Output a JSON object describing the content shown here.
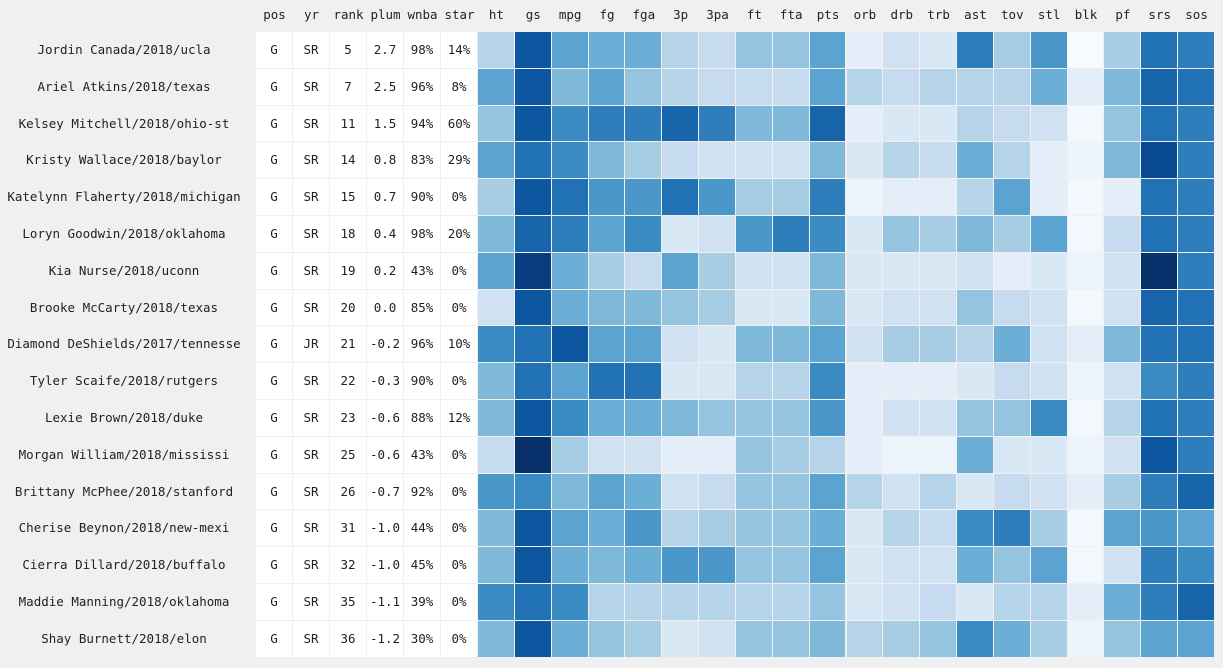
{
  "chart_data": {
    "type": "heatmap",
    "title": "",
    "colorscale": "Blues",
    "grid_background": "#f0f0f0",
    "text_columns": [
      "pos",
      "yr",
      "rank",
      "plum",
      "wnba",
      "star"
    ],
    "heat_columns": [
      "ht",
      "gs",
      "mpg",
      "fg",
      "fga",
      "3p",
      "3pa",
      "ft",
      "fta",
      "pts",
      "orb",
      "drb",
      "trb",
      "ast",
      "tov",
      "stl",
      "blk",
      "pf",
      "srs",
      "sos"
    ],
    "rows": [
      {
        "label": "Jordin Canada/2018/ucla",
        "pos": "G",
        "yr": "SR",
        "rank": "5",
        "plum": "2.7",
        "wnba": "98%",
        "star": "14%",
        "heat": [
          0.3,
          0.85,
          0.55,
          0.5,
          0.5,
          0.3,
          0.25,
          0.4,
          0.4,
          0.55,
          0.1,
          0.2,
          0.15,
          0.7,
          0.35,
          0.6,
          0.0,
          0.35,
          0.75,
          0.7
        ]
      },
      {
        "label": "Ariel Atkins/2018/texas",
        "pos": "G",
        "yr": "SR",
        "rank": "7",
        "plum": "2.5",
        "wnba": "96%",
        "star": "8%",
        "heat": [
          0.55,
          0.85,
          0.45,
          0.55,
          0.4,
          0.3,
          0.25,
          0.25,
          0.25,
          0.55,
          0.3,
          0.25,
          0.3,
          0.3,
          0.3,
          0.5,
          0.1,
          0.45,
          0.8,
          0.75
        ]
      },
      {
        "label": "Kelsey Mitchell/2018/ohio-st",
        "pos": "G",
        "yr": "SR",
        "rank": "11",
        "plum": "1.5",
        "wnba": "94%",
        "star": "60%",
        "heat": [
          0.4,
          0.85,
          0.65,
          0.7,
          0.7,
          0.8,
          0.7,
          0.45,
          0.45,
          0.8,
          0.1,
          0.15,
          0.15,
          0.3,
          0.25,
          0.2,
          0.02,
          0.4,
          0.75,
          0.7
        ]
      },
      {
        "label": "Kristy Wallace/2018/baylor",
        "pos": "G",
        "yr": "SR",
        "rank": "14",
        "plum": "0.8",
        "wnba": "83%",
        "star": "29%",
        "heat": [
          0.55,
          0.75,
          0.65,
          0.45,
          0.35,
          0.25,
          0.2,
          0.2,
          0.2,
          0.45,
          0.15,
          0.3,
          0.25,
          0.5,
          0.3,
          0.1,
          0.05,
          0.45,
          0.9,
          0.7
        ]
      },
      {
        "label": "Katelynn Flaherty/2018/michigan",
        "pos": "G",
        "yr": "SR",
        "rank": "15",
        "plum": "0.7",
        "wnba": "90%",
        "star": "0%",
        "heat": [
          0.35,
          0.85,
          0.75,
          0.6,
          0.6,
          0.75,
          0.6,
          0.35,
          0.35,
          0.7,
          0.05,
          0.1,
          0.1,
          0.3,
          0.55,
          0.1,
          0.02,
          0.1,
          0.75,
          0.7
        ]
      },
      {
        "label": "Loryn Goodwin/2018/oklahoma",
        "pos": "G",
        "yr": "SR",
        "rank": "18",
        "plum": "0.4",
        "wnba": "98%",
        "star": "20%",
        "heat": [
          0.45,
          0.8,
          0.7,
          0.55,
          0.65,
          0.15,
          0.2,
          0.6,
          0.7,
          0.65,
          0.15,
          0.4,
          0.35,
          0.45,
          0.35,
          0.55,
          0.02,
          0.25,
          0.75,
          0.7
        ]
      },
      {
        "label": "Kia Nurse/2018/uconn",
        "pos": "G",
        "yr": "SR",
        "rank": "19",
        "plum": "0.2",
        "wnba": "43%",
        "star": "0%",
        "heat": [
          0.55,
          0.95,
          0.5,
          0.35,
          0.25,
          0.55,
          0.35,
          0.2,
          0.2,
          0.45,
          0.15,
          0.15,
          0.15,
          0.2,
          0.1,
          0.15,
          0.05,
          0.2,
          1.0,
          0.7
        ]
      },
      {
        "label": "Brooke McCarty/2018/texas",
        "pos": "G",
        "yr": "SR",
        "rank": "20",
        "plum": "0.0",
        "wnba": "85%",
        "star": "0%",
        "heat": [
          0.2,
          0.85,
          0.5,
          0.45,
          0.45,
          0.4,
          0.35,
          0.15,
          0.15,
          0.45,
          0.15,
          0.2,
          0.2,
          0.4,
          0.25,
          0.2,
          0.02,
          0.2,
          0.8,
          0.75
        ]
      },
      {
        "label": "Diamond DeShields/2017/tennesse",
        "pos": "G",
        "yr": "JR",
        "rank": "21",
        "plum": "-0.2",
        "wnba": "96%",
        "star": "10%",
        "heat": [
          0.65,
          0.75,
          0.85,
          0.55,
          0.55,
          0.2,
          0.15,
          0.45,
          0.45,
          0.55,
          0.2,
          0.35,
          0.35,
          0.3,
          0.5,
          0.2,
          0.1,
          0.45,
          0.75,
          0.75
        ]
      },
      {
        "label": "Tyler Scaife/2018/rutgers",
        "pos": "G",
        "yr": "SR",
        "rank": "22",
        "plum": "-0.3",
        "wnba": "90%",
        "star": "0%",
        "heat": [
          0.45,
          0.75,
          0.55,
          0.75,
          0.75,
          0.15,
          0.15,
          0.3,
          0.3,
          0.65,
          0.1,
          0.1,
          0.1,
          0.15,
          0.25,
          0.2,
          0.05,
          0.2,
          0.65,
          0.7
        ]
      },
      {
        "label": "Lexie Brown/2018/duke",
        "pos": "G",
        "yr": "SR",
        "rank": "23",
        "plum": "-0.6",
        "wnba": "88%",
        "star": "12%",
        "heat": [
          0.45,
          0.85,
          0.65,
          0.5,
          0.5,
          0.45,
          0.4,
          0.4,
          0.4,
          0.6,
          0.1,
          0.2,
          0.2,
          0.4,
          0.4,
          0.65,
          0.02,
          0.3,
          0.75,
          0.7
        ]
      },
      {
        "label": "Morgan William/2018/mississi",
        "pos": "G",
        "yr": "SR",
        "rank": "25",
        "plum": "-0.6",
        "wnba": "43%",
        "star": "0%",
        "heat": [
          0.25,
          1.0,
          0.35,
          0.2,
          0.2,
          0.1,
          0.1,
          0.4,
          0.35,
          0.3,
          0.1,
          0.05,
          0.05,
          0.5,
          0.15,
          0.15,
          0.05,
          0.2,
          0.85,
          0.7
        ]
      },
      {
        "label": "Brittany McPhee/2018/stanford",
        "pos": "G",
        "yr": "SR",
        "rank": "26",
        "plum": "-0.7",
        "wnba": "92%",
        "star": "0%",
        "heat": [
          0.6,
          0.65,
          0.45,
          0.55,
          0.5,
          0.2,
          0.25,
          0.4,
          0.4,
          0.55,
          0.3,
          0.2,
          0.3,
          0.15,
          0.25,
          0.2,
          0.1,
          0.35,
          0.7,
          0.8
        ]
      },
      {
        "label": "Cherise Beynon/2018/new-mexi",
        "pos": "G",
        "yr": "SR",
        "rank": "31",
        "plum": "-1.0",
        "wnba": "44%",
        "star": "0%",
        "heat": [
          0.45,
          0.85,
          0.55,
          0.5,
          0.6,
          0.3,
          0.35,
          0.4,
          0.4,
          0.5,
          0.15,
          0.3,
          0.25,
          0.65,
          0.7,
          0.35,
          0.02,
          0.55,
          0.6,
          0.55
        ]
      },
      {
        "label": "Cierra Dillard/2018/buffalo",
        "pos": "G",
        "yr": "SR",
        "rank": "32",
        "plum": "-1.0",
        "wnba": "45%",
        "star": "0%",
        "heat": [
          0.45,
          0.85,
          0.5,
          0.45,
          0.5,
          0.6,
          0.6,
          0.4,
          0.4,
          0.55,
          0.15,
          0.2,
          0.2,
          0.5,
          0.4,
          0.55,
          0.02,
          0.2,
          0.7,
          0.65
        ]
      },
      {
        "label": "Maddie Manning/2018/oklahoma",
        "pos": "G",
        "yr": "SR",
        "rank": "35",
        "plum": "-1.1",
        "wnba": "39%",
        "star": "0%",
        "heat": [
          0.65,
          0.75,
          0.65,
          0.3,
          0.3,
          0.3,
          0.3,
          0.3,
          0.3,
          0.4,
          0.15,
          0.2,
          0.25,
          0.15,
          0.3,
          0.3,
          0.1,
          0.5,
          0.7,
          0.8
        ]
      },
      {
        "label": "Shay Burnett/2018/elon",
        "pos": "G",
        "yr": "SR",
        "rank": "36",
        "plum": "-1.2",
        "wnba": "30%",
        "star": "0%",
        "heat": [
          0.45,
          0.85,
          0.5,
          0.4,
          0.35,
          0.15,
          0.2,
          0.4,
          0.4,
          0.45,
          0.3,
          0.35,
          0.4,
          0.65,
          0.5,
          0.35,
          0.05,
          0.4,
          0.55,
          0.55
        ]
      }
    ]
  }
}
